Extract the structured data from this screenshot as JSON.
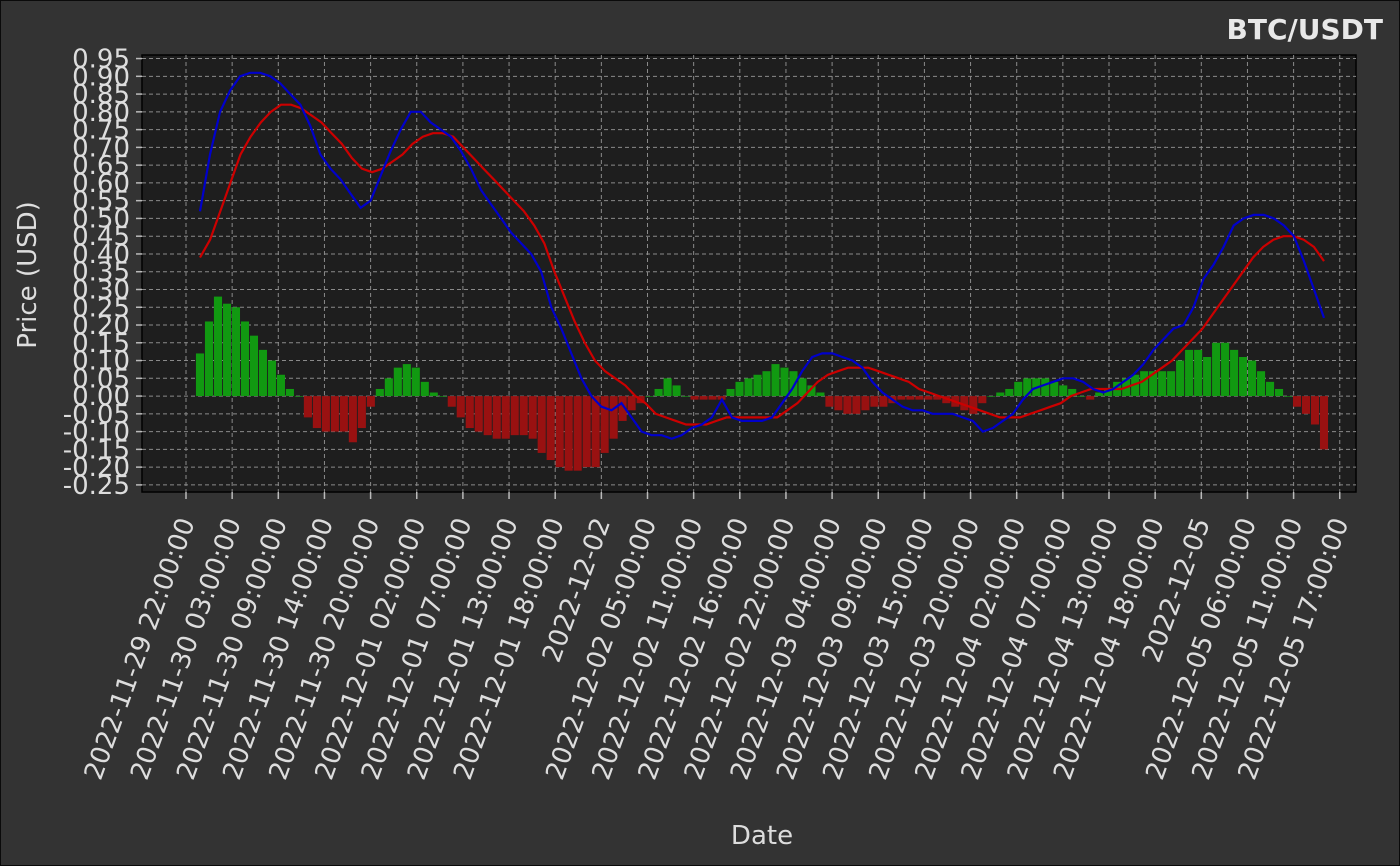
{
  "chart_data": {
    "type": "bar",
    "title": "BTC/USDT",
    "xlabel": "Date",
    "ylabel": "Price (USD)",
    "ylim": [
      -0.27,
      0.96
    ],
    "grid": true,
    "colors": {
      "line_fast": "#0000cc",
      "line_slow": "#cc0000",
      "bar_positive": "#119911",
      "bar_negative": "#991111",
      "background": "#333333",
      "plot_background": "#1e1e1e"
    },
    "y_ticks": [
      -0.25,
      -0.2,
      -0.15,
      -0.1,
      -0.05,
      0.0,
      0.05,
      0.1,
      0.15,
      0.2,
      0.25,
      0.3,
      0.35,
      0.4,
      0.45,
      0.5,
      0.55,
      0.6,
      0.65,
      0.7,
      0.75,
      0.8,
      0.85,
      0.9,
      0.95
    ],
    "y_tick_labels": [
      "-0.25",
      "-0.20",
      "-0.15",
      "-0.10",
      "-0.05",
      "0.00",
      "0.05",
      "0.10",
      "0.15",
      "0.20",
      "0.25",
      "0.30",
      "0.35",
      "0.40",
      "0.45",
      "0.50",
      "0.55",
      "0.60",
      "0.65",
      "0.70",
      "0.75",
      "0.80",
      "0.85",
      "0.90",
      "0.95"
    ],
    "x_tick_labels": [
      "2022-11-29 22:00:00",
      "2022-11-30 03:00:00",
      "2022-11-30 09:00:00",
      "2022-11-30 14:00:00",
      "2022-11-30 20:00:00",
      "2022-12-01 02:00:00",
      "2022-12-01 07:00:00",
      "2022-12-01 13:00:00",
      "2022-12-01 18:00:00",
      "2022-12-02",
      "2022-12-02 05:00:00",
      "2022-12-02 11:00:00",
      "2022-12-02 16:00:00",
      "2022-12-02 22:00:00",
      "2022-12-03 04:00:00",
      "2022-12-03 09:00:00",
      "2022-12-03 15:00:00",
      "2022-12-03 20:00:00",
      "2022-12-04 02:00:00",
      "2022-12-04 07:00:00",
      "2022-12-04 13:00:00",
      "2022-12-04 18:00:00",
      "2022-12-05",
      "2022-12-05 06:00:00",
      "2022-12-05 11:00:00",
      "2022-12-05 17:00:00"
    ],
    "series": [
      {
        "kind": "line",
        "values": [
          0.52,
          0.68,
          0.8,
          0.86,
          0.9,
          0.91,
          0.91,
          0.9,
          0.88,
          0.85,
          0.82,
          0.76,
          0.68,
          0.64,
          0.61,
          0.57,
          0.53,
          0.55,
          0.62,
          0.69,
          0.75,
          0.8,
          0.8,
          0.77,
          0.75,
          0.73,
          0.69,
          0.64,
          0.58,
          0.54,
          0.5,
          0.46,
          0.43,
          0.4,
          0.35,
          0.25,
          0.19,
          0.12,
          0.05,
          0.0,
          -0.03,
          -0.04,
          -0.02,
          -0.06,
          -0.1,
          -0.11,
          -0.11,
          -0.12,
          -0.11,
          -0.09,
          -0.08,
          -0.06,
          -0.01,
          -0.06,
          -0.07,
          -0.07,
          -0.07,
          -0.06,
          -0.02,
          0.02,
          0.07,
          0.11,
          0.12,
          0.12,
          0.11,
          0.1,
          0.08,
          0.04,
          0.01,
          -0.01,
          -0.03,
          -0.04,
          -0.04,
          -0.05,
          -0.05,
          -0.05,
          -0.06,
          -0.07,
          -0.1,
          -0.09,
          -0.07,
          -0.05,
          -0.01,
          0.02,
          0.03,
          0.04,
          0.05,
          0.05,
          0.04,
          0.02,
          0.01,
          0.02,
          0.04,
          0.06,
          0.09,
          0.13,
          0.16,
          0.19,
          0.2,
          0.25,
          0.33,
          0.37,
          0.42,
          0.48,
          0.5,
          0.51,
          0.51,
          0.5,
          0.48,
          0.45,
          0.38,
          0.3,
          0.22
        ]
      },
      {
        "kind": "line",
        "values": [
          0.39,
          0.44,
          0.52,
          0.6,
          0.68,
          0.73,
          0.77,
          0.8,
          0.82,
          0.82,
          0.81,
          0.79,
          0.77,
          0.74,
          0.71,
          0.67,
          0.64,
          0.63,
          0.64,
          0.66,
          0.68,
          0.71,
          0.73,
          0.74,
          0.74,
          0.73,
          0.7,
          0.67,
          0.64,
          0.61,
          0.58,
          0.55,
          0.52,
          0.48,
          0.43,
          0.35,
          0.28,
          0.21,
          0.15,
          0.1,
          0.07,
          0.05,
          0.03,
          0.0,
          -0.02,
          -0.05,
          -0.06,
          -0.07,
          -0.08,
          -0.08,
          -0.08,
          -0.07,
          -0.06,
          -0.06,
          -0.06,
          -0.06,
          -0.06,
          -0.06,
          -0.04,
          -0.02,
          0.01,
          0.04,
          0.06,
          0.07,
          0.08,
          0.08,
          0.08,
          0.07,
          0.06,
          0.05,
          0.04,
          0.02,
          0.01,
          0.0,
          -0.01,
          -0.02,
          -0.03,
          -0.04,
          -0.05,
          -0.06,
          -0.06,
          -0.06,
          -0.05,
          -0.04,
          -0.03,
          -0.02,
          0.0,
          0.01,
          0.02,
          0.02,
          0.02,
          0.02,
          0.03,
          0.04,
          0.06,
          0.08,
          0.1,
          0.13,
          0.16,
          0.19,
          0.23,
          0.27,
          0.31,
          0.35,
          0.39,
          0.42,
          0.44,
          0.45,
          0.45,
          0.44,
          0.42,
          0.38
        ]
      },
      {
        "kind": "bar",
        "values": [
          0.12,
          0.21,
          0.28,
          0.26,
          0.25,
          0.21,
          0.17,
          0.13,
          0.1,
          0.06,
          0.02,
          0.0,
          -0.06,
          -0.09,
          -0.1,
          -0.1,
          -0.1,
          -0.13,
          -0.09,
          -0.03,
          0.02,
          0.05,
          0.08,
          0.09,
          0.08,
          0.04,
          0.01,
          0.0,
          -0.03,
          -0.06,
          -0.09,
          -0.1,
          -0.11,
          -0.12,
          -0.12,
          -0.11,
          -0.11,
          -0.12,
          -0.16,
          -0.18,
          -0.2,
          -0.21,
          -0.21,
          -0.2,
          -0.2,
          -0.16,
          -0.12,
          -0.07,
          -0.04,
          -0.02,
          0.0,
          0.02,
          0.05,
          0.03,
          0.0,
          -0.01,
          -0.01,
          -0.01,
          -0.01,
          0.02,
          0.04,
          0.05,
          0.06,
          0.07,
          0.09,
          0.08,
          0.07,
          0.05,
          0.03,
          0.01,
          -0.03,
          -0.04,
          -0.05,
          -0.05,
          -0.04,
          -0.03,
          -0.03,
          -0.02,
          -0.01,
          -0.01,
          -0.01,
          -0.01,
          -0.01,
          -0.02,
          -0.03,
          -0.04,
          -0.05,
          -0.02,
          0.0,
          0.01,
          0.02,
          0.04,
          0.05,
          0.05,
          0.05,
          0.04,
          0.03,
          0.02,
          0.0,
          -0.01,
          0.01,
          0.02,
          0.04,
          0.05,
          0.06,
          0.07,
          0.07,
          0.07,
          0.07,
          0.1,
          0.13,
          0.13,
          0.11,
          0.15,
          0.15,
          0.13,
          0.11,
          0.1,
          0.07,
          0.04,
          0.02,
          0.0,
          -0.03,
          -0.05,
          -0.08,
          -0.15
        ]
      }
    ]
  }
}
